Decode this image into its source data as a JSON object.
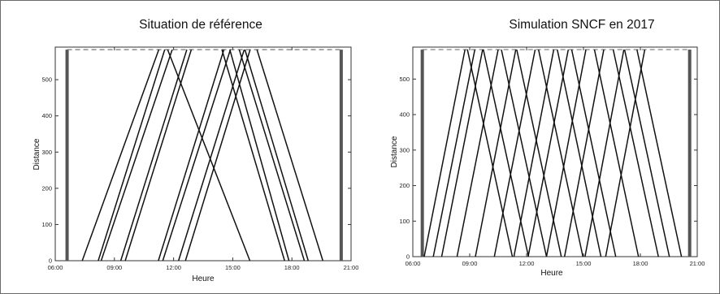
{
  "colors": {
    "train_line": "#111111",
    "reference_dash": "#777777",
    "terminal_bar": "#555555",
    "frame": "#333333"
  },
  "chart_data": [
    {
      "type": "line",
      "title": "Situation de référence",
      "xlabel": "Heure",
      "ylabel": "Distance",
      "xlim": [
        6.0,
        21.0
      ],
      "ylim": [
        0,
        590
      ],
      "xticks": [
        {
          "value": 6,
          "label": "06:00"
        },
        {
          "value": 9,
          "label": "09:00"
        },
        {
          "value": 12,
          "label": "12:00"
        },
        {
          "value": 15,
          "label": "15:00"
        },
        {
          "value": 18,
          "label": "18:00"
        },
        {
          "value": 21,
          "label": "21:00"
        }
      ],
      "yticks": [
        0,
        100,
        200,
        300,
        400,
        500
      ],
      "reference_line_y": 583,
      "terminal_bars_x": [
        6.6,
        20.5
      ],
      "trains": [
        {
          "x": [
            7.37,
            11.25
          ],
          "y": [
            0,
            583
          ]
        },
        {
          "x": [
            8.18,
            11.55
          ],
          "y": [
            0,
            583
          ]
        },
        {
          "x": [
            8.33,
            11.93
          ],
          "y": [
            0,
            583
          ]
        },
        {
          "x": [
            9.32,
            12.67
          ],
          "y": [
            0,
            583
          ]
        },
        {
          "x": [
            9.55,
            12.9
          ],
          "y": [
            0,
            583
          ]
        },
        {
          "x": [
            11.23,
            14.55
          ],
          "y": [
            0,
            583
          ]
        },
        {
          "x": [
            11.45,
            14.88
          ],
          "y": [
            0,
            583
          ]
        },
        {
          "x": [
            12.25,
            15.58
          ],
          "y": [
            0,
            583
          ]
        },
        {
          "x": [
            12.6,
            15.88
          ],
          "y": [
            0,
            583
          ]
        },
        {
          "x": [
            11.7,
            15.87
          ],
          "y": [
            583,
            0
          ]
        },
        {
          "x": [
            14.45,
            17.63
          ],
          "y": [
            583,
            0
          ]
        },
        {
          "x": [
            14.85,
            17.85
          ],
          "y": [
            583,
            0
          ]
        },
        {
          "x": [
            15.33,
            18.63
          ],
          "y": [
            583,
            0
          ]
        },
        {
          "x": [
            15.62,
            18.83
          ],
          "y": [
            583,
            0
          ]
        },
        {
          "x": [
            16.23,
            19.57
          ],
          "y": [
            583,
            0
          ]
        }
      ]
    },
    {
      "type": "line",
      "title": "Simulation SNCF en 2017",
      "xlabel": "Heure",
      "ylabel": "Distance",
      "xlim": [
        6.0,
        21.0
      ],
      "ylim": [
        0,
        590
      ],
      "xticks": [
        {
          "value": 6,
          "label": "06:00"
        },
        {
          "value": 9,
          "label": "09:00"
        },
        {
          "value": 12,
          "label": "12:00"
        },
        {
          "value": 15,
          "label": "15:00"
        },
        {
          "value": 18,
          "label": "18:00"
        },
        {
          "value": 21,
          "label": "21:00"
        }
      ],
      "yticks": [
        0,
        100,
        200,
        300,
        400,
        500
      ],
      "reference_line_y": 583,
      "terminal_bars_x": [
        6.5,
        20.6
      ],
      "trains": [
        {
          "x": [
            6.6,
            8.75
          ],
          "y": [
            0,
            583
          ]
        },
        {
          "x": [
            7.08,
            9.27
          ],
          "y": [
            0,
            583
          ]
        },
        {
          "x": [
            7.52,
            9.68
          ],
          "y": [
            0,
            583
          ]
        },
        {
          "x": [
            8.33,
            10.5
          ],
          "y": [
            0,
            583
          ]
        },
        {
          "x": [
            9.3,
            11.43
          ],
          "y": [
            0,
            583
          ]
        },
        {
          "x": [
            10.3,
            12.45
          ],
          "y": [
            0,
            583
          ]
        },
        {
          "x": [
            11.33,
            13.43
          ],
          "y": [
            0,
            583
          ]
        },
        {
          "x": [
            12.08,
            14.2
          ],
          "y": [
            0,
            583
          ]
        },
        {
          "x": [
            13.05,
            15.13
          ],
          "y": [
            0,
            583
          ]
        },
        {
          "x": [
            14.0,
            16.07
          ],
          "y": [
            0,
            583
          ]
        },
        {
          "x": [
            15.08,
            17.13
          ],
          "y": [
            0,
            583
          ]
        },
        {
          "x": [
            16.17,
            18.23
          ],
          "y": [
            0,
            583
          ]
        },
        {
          "x": [
            8.88,
            11.25
          ],
          "y": [
            583,
            0
          ]
        },
        {
          "x": [
            9.72,
            12.1
          ],
          "y": [
            583,
            0
          ]
        },
        {
          "x": [
            10.67,
            13.05
          ],
          "y": [
            583,
            0
          ]
        },
        {
          "x": [
            11.48,
            13.83
          ],
          "y": [
            583,
            0
          ]
        },
        {
          "x": [
            12.63,
            14.97
          ],
          "y": [
            583,
            0
          ]
        },
        {
          "x": [
            13.62,
            15.92
          ],
          "y": [
            583,
            0
          ]
        },
        {
          "x": [
            14.38,
            16.7
          ],
          "y": [
            583,
            0
          ]
        },
        {
          "x": [
            15.58,
            17.9
          ],
          "y": [
            583,
            0
          ]
        },
        {
          "x": [
            16.57,
            18.95
          ],
          "y": [
            583,
            0
          ]
        },
        {
          "x": [
            17.17,
            19.53
          ],
          "y": [
            583,
            0
          ]
        },
        {
          "x": [
            17.82,
            20.17
          ],
          "y": [
            583,
            0
          ]
        }
      ]
    }
  ]
}
